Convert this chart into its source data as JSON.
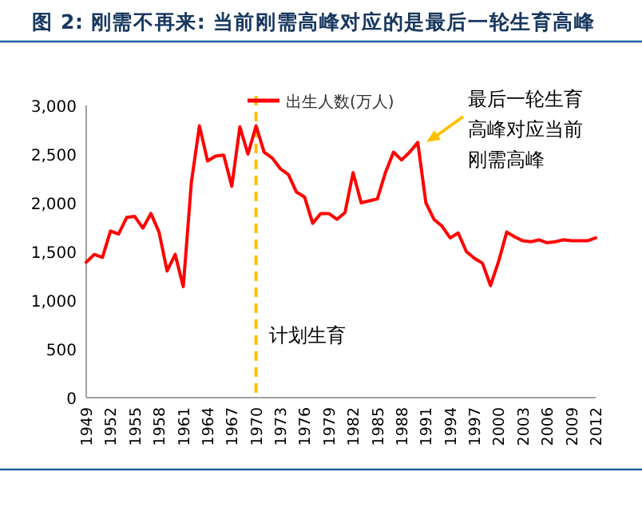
{
  "chart_data": {
    "type": "line",
    "title": "图 2: 刚需不再来: 当前刚需高峰对应的是最后一轮生育高峰",
    "categories": [
      "1949",
      null,
      null,
      "1952",
      null,
      null,
      "1955",
      null,
      null,
      "1958",
      null,
      null,
      "1961",
      null,
      null,
      "1964",
      null,
      null,
      "1967",
      null,
      null,
      "1970",
      null,
      null,
      "1973",
      null,
      null,
      "1976",
      null,
      null,
      "1979",
      null,
      null,
      "1982",
      null,
      null,
      "1985",
      null,
      null,
      "1988",
      null,
      null,
      "1991",
      null,
      null,
      "1994",
      null,
      null,
      "1997",
      null,
      null,
      "2000",
      null,
      null,
      "2003",
      null,
      null,
      "2006",
      null,
      null,
      "2009",
      null,
      null,
      "2012"
    ],
    "series": [
      {
        "name": "出生人数(万人)",
        "color": "#ff0000",
        "values": [
          1390,
          1470,
          1440,
          1710,
          1680,
          1850,
          1860,
          1740,
          1890,
          1700,
          1300,
          1470,
          1140,
          2210,
          2790,
          2430,
          2480,
          2490,
          2170,
          2780,
          2500,
          2790,
          2520,
          2460,
          2350,
          2290,
          2110,
          2060,
          1790,
          1890,
          1890,
          1830,
          1900,
          2310,
          2000,
          2020,
          2040,
          2310,
          2520,
          2440,
          2520,
          2620,
          2000,
          1830,
          1760,
          1640,
          1690,
          1500,
          1430,
          1380,
          1150,
          1400,
          1700,
          1650,
          1610,
          1600,
          1620,
          1590,
          1600,
          1620,
          1610,
          1610,
          1610,
          1640
        ]
      }
    ],
    "ylim": [
      0,
      3000
    ],
    "yticks": [
      0,
      500,
      {
        "value": 1000,
        "label": "1,000"
      },
      {
        "value": 1500,
        "label": "1,500"
      },
      {
        "value": 2000,
        "label": "2,000"
      },
      {
        "value": 2500,
        "label": "2,500"
      },
      {
        "value": 3000,
        "label": "3,000"
      }
    ],
    "ref_lines": [
      {
        "axis": "x",
        "value": "1970",
        "label": "计划生育",
        "color": "#ffc000",
        "line_style": "dashed"
      }
    ],
    "annotations": [
      "最后一轮生育高峰对应当前刚需高峰"
    ],
    "legend": "top",
    "grid": false,
    "marker": "none",
    "line_style": "solid"
  }
}
